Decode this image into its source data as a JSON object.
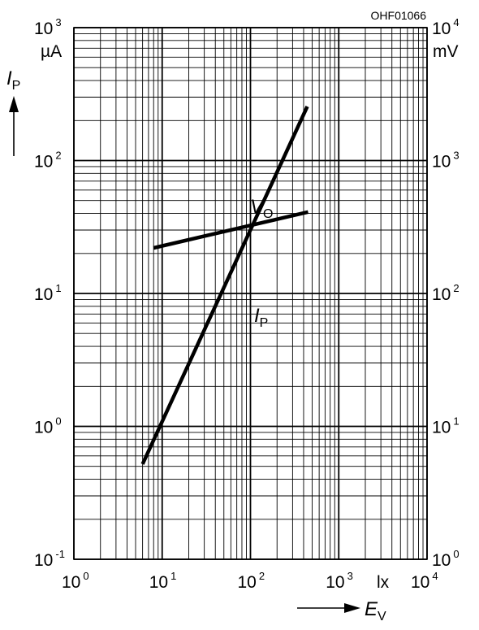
{
  "chart_data": {
    "type": "line",
    "drawing_code": "OHF01066",
    "scale": "log-log",
    "grid": true,
    "x_axis": {
      "label": "E",
      "label_sub": "V",
      "unit": "lx",
      "lim": [
        1,
        10000
      ],
      "ticks": [
        {
          "base": "10",
          "exp": "0",
          "value": 1
        },
        {
          "base": "10",
          "exp": "1",
          "value": 10
        },
        {
          "base": "10",
          "exp": "2",
          "value": 100
        },
        {
          "base": "10",
          "exp": "3",
          "value": 1000
        },
        {
          "base": "10",
          "exp": "4",
          "value": 10000
        }
      ]
    },
    "y_left": {
      "label": "I",
      "label_sub": "P",
      "unit": "µA",
      "lim": [
        0.1,
        1000
      ],
      "ticks": [
        {
          "base": "10",
          "exp": "-1",
          "value": 0.1
        },
        {
          "base": "10",
          "exp": "0",
          "value": 1
        },
        {
          "base": "10",
          "exp": "1",
          "value": 10
        },
        {
          "base": "10",
          "exp": "2",
          "value": 100
        },
        {
          "base": "10",
          "exp": "3",
          "value": 1000
        }
      ]
    },
    "y_right": {
      "unit": "mV",
      "lim": [
        1,
        10000
      ],
      "ticks": [
        {
          "base": "10",
          "exp": "0",
          "value": 1
        },
        {
          "base": "10",
          "exp": "1",
          "value": 10
        },
        {
          "base": "10",
          "exp": "2",
          "value": 100
        },
        {
          "base": "10",
          "exp": "3",
          "value": 1000
        },
        {
          "base": "10",
          "exp": "4",
          "value": 10000
        }
      ]
    },
    "series": [
      {
        "name": "I",
        "name_sub": "P",
        "axis": "left",
        "x": [
          6,
          440
        ],
        "y": [
          0.52,
          255
        ]
      },
      {
        "name": "V",
        "name_sub": "O",
        "axis": "right",
        "x": [
          8,
          450
        ],
        "y": [
          220,
          410
        ]
      }
    ]
  }
}
